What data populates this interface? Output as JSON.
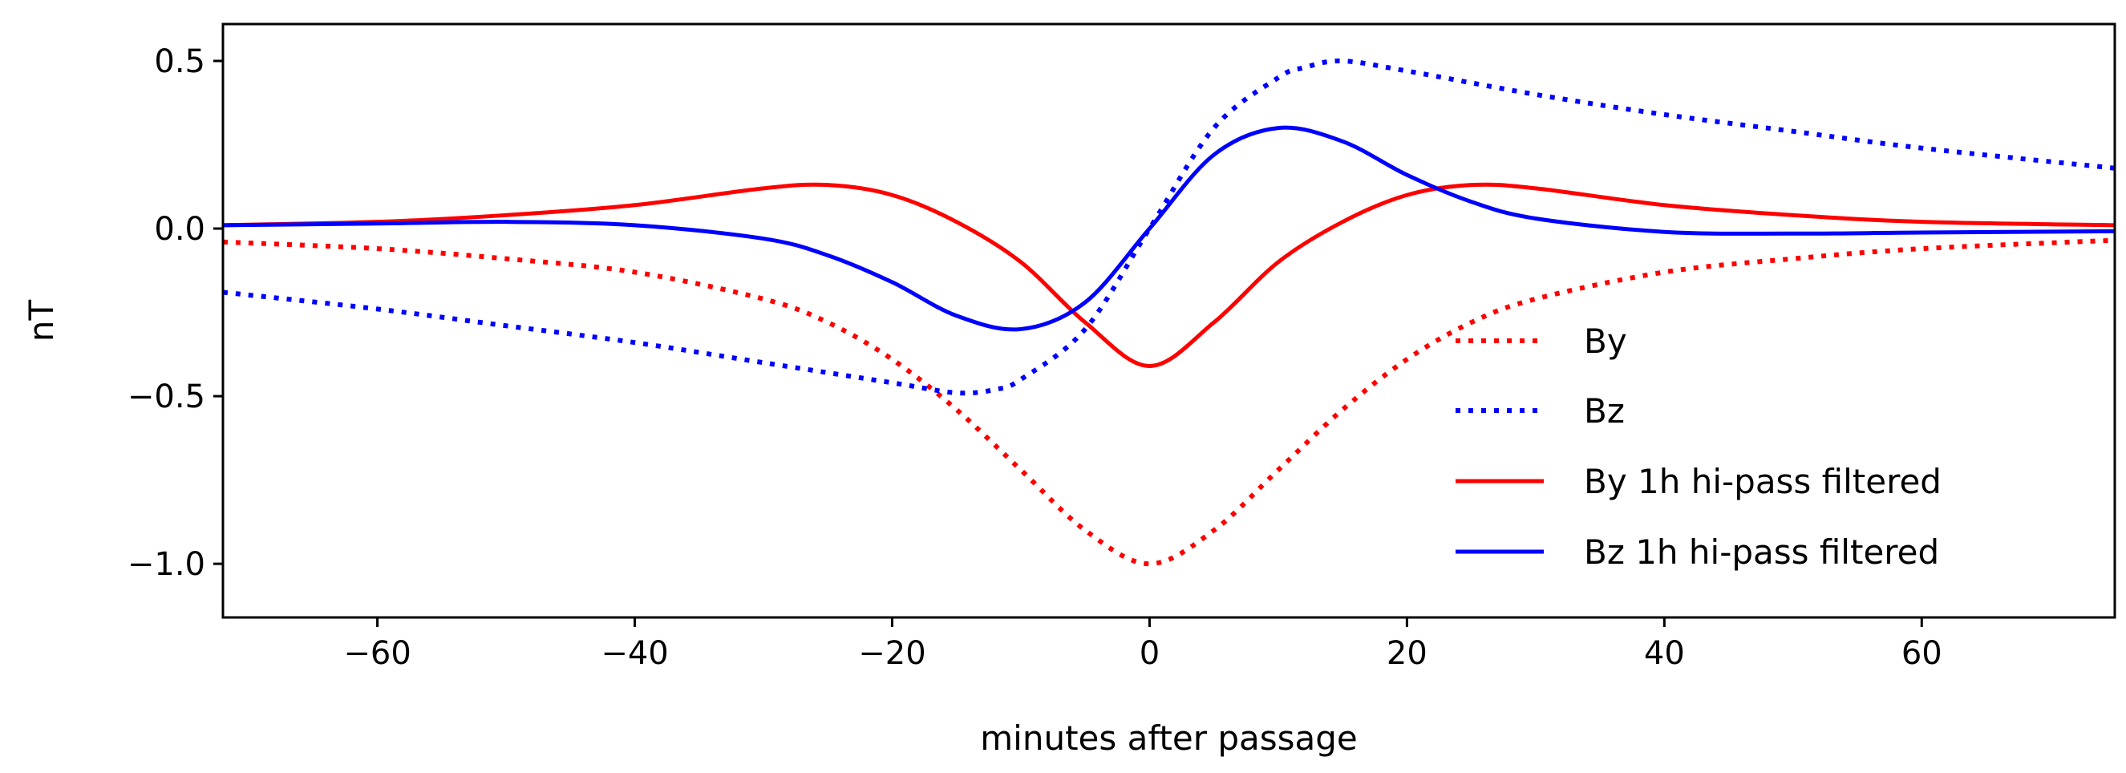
{
  "chart_data": {
    "type": "line",
    "title": "",
    "xlabel": "minutes after passage",
    "ylabel": "nT",
    "xlim": [
      -72,
      75
    ],
    "ylim": [
      -1.16,
      0.61
    ],
    "xticks": [
      -60,
      -40,
      -20,
      0,
      20,
      40,
      60
    ],
    "xtick_labels": [
      "−60",
      "−40",
      "−20",
      "0",
      "20",
      "40",
      "60"
    ],
    "yticks": [
      0.5,
      0.0,
      -0.5,
      -1.0
    ],
    "ytick_labels": [
      "0.5",
      "0.0",
      "−0.5",
      "−1.0"
    ],
    "grid": false,
    "legend_position": "lower-right",
    "series": [
      {
        "name": "By",
        "color": "#ff0000",
        "style": "dotted",
        "x": [
          -72,
          -60,
          -50,
          -40,
          -30,
          -25,
          -20,
          -15,
          -10,
          -5,
          0,
          5,
          10,
          15,
          20,
          25,
          30,
          40,
          50,
          60,
          75
        ],
        "y": [
          -0.04,
          -0.06,
          -0.09,
          -0.13,
          -0.21,
          -0.28,
          -0.39,
          -0.54,
          -0.72,
          -0.9,
          -1.0,
          -0.9,
          -0.72,
          -0.54,
          -0.39,
          -0.28,
          -0.21,
          -0.13,
          -0.09,
          -0.06,
          -0.035
        ]
      },
      {
        "name": "Bz",
        "color": "#0000ff",
        "style": "dotted",
        "x": [
          -72,
          -60,
          -50,
          -40,
          -30,
          -20,
          -15,
          -12,
          -10,
          -5,
          0,
          5,
          10,
          12,
          15,
          20,
          30,
          40,
          50,
          60,
          75
        ],
        "y": [
          -0.19,
          -0.24,
          -0.29,
          -0.34,
          -0.4,
          -0.46,
          -0.49,
          -0.48,
          -0.45,
          -0.3,
          0.0,
          0.3,
          0.45,
          0.48,
          0.5,
          0.47,
          0.4,
          0.34,
          0.29,
          0.24,
          0.18
        ]
      },
      {
        "name": "By 1h hi-pass filtered",
        "color": "#ff0000",
        "style": "solid",
        "x": [
          -72,
          -60,
          -50,
          -40,
          -30,
          -25,
          -20,
          -15,
          -10,
          -5,
          0,
          5,
          10,
          15,
          20,
          25,
          30,
          40,
          50,
          60,
          75
        ],
        "y": [
          0.01,
          0.02,
          0.04,
          0.07,
          0.12,
          0.13,
          0.1,
          0.02,
          -0.1,
          -0.28,
          -0.41,
          -0.28,
          -0.1,
          0.02,
          0.1,
          0.13,
          0.12,
          0.07,
          0.04,
          0.02,
          0.01
        ]
      },
      {
        "name": "Bz 1h hi-pass filtered",
        "color": "#0000ff",
        "style": "solid",
        "x": [
          -72,
          -60,
          -50,
          -40,
          -30,
          -25,
          -20,
          -15,
          -10,
          -5,
          0,
          5,
          10,
          15,
          20,
          25,
          30,
          40,
          50,
          60,
          75
        ],
        "y": [
          0.01,
          0.015,
          0.02,
          0.01,
          -0.03,
          -0.08,
          -0.16,
          -0.26,
          -0.3,
          -0.22,
          0.0,
          0.22,
          0.3,
          0.26,
          0.16,
          0.08,
          0.03,
          -0.01,
          -0.015,
          -0.012,
          -0.008
        ]
      }
    ]
  }
}
